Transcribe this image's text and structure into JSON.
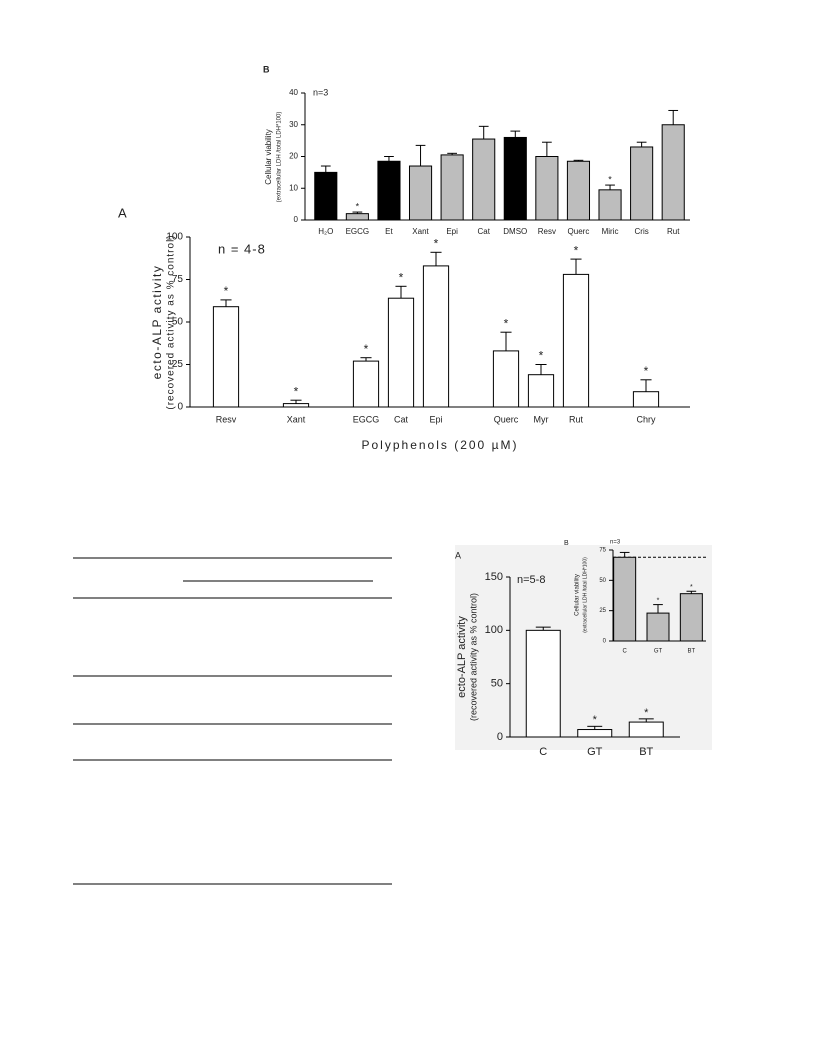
{
  "chart_data": [
    {
      "type": "bar",
      "panel": "A",
      "annotation": "n = 4-8",
      "ylabel": "ecto-ALP activity",
      "ylabel_sub": "(recovered activity as % control)",
      "xlabel": "Polyphenols (200 µM)",
      "categories": [
        "Resv",
        null,
        "Xant",
        null,
        "EGCG",
        "Cat",
        "Epi",
        null,
        "Querc",
        "Myr",
        "Rut",
        null,
        "Chry"
      ],
      "values": [
        59,
        null,
        2,
        null,
        27,
        64,
        83,
        null,
        33,
        19,
        78,
        null,
        9
      ],
      "errors": [
        4,
        null,
        2,
        null,
        2,
        7,
        8,
        null,
        11,
        6,
        9,
        null,
        7
      ],
      "significance": [
        "*",
        null,
        "*",
        null,
        "*",
        "*",
        "*",
        null,
        "*",
        "*",
        "*",
        null,
        "*"
      ],
      "colors": [
        "#ffffff",
        null,
        "#ffffff",
        null,
        "#ffffff",
        "#ffffff",
        "#ffffff",
        null,
        "#ffffff",
        "#ffffff",
        "#ffffff",
        null,
        "#ffffff"
      ],
      "ylim": [
        0,
        100
      ],
      "yticks": [
        0,
        25,
        50,
        75,
        100
      ]
    },
    {
      "type": "bar",
      "panel": "B",
      "annotation": "n=3",
      "ylabel": "Cellular viability",
      "ylabel_sub": "(extracellular LDH /total LDH*100)",
      "categories": [
        "H₂O",
        "EGCG",
        "Et",
        "Xant",
        "Epi",
        "Cat",
        "DMSO",
        "Resv",
        "Querc",
        "Miric",
        "Cris",
        "Rut"
      ],
      "values": [
        15,
        2,
        18.5,
        17,
        20.5,
        25.5,
        26,
        20,
        18.5,
        9.5,
        23,
        30
      ],
      "errors": [
        2,
        0.5,
        1.5,
        6.5,
        0.5,
        4,
        2,
        4.5,
        0.3,
        1.5,
        1.5,
        4.5
      ],
      "significance": [
        null,
        "*",
        null,
        null,
        null,
        null,
        null,
        null,
        null,
        "*",
        null,
        null
      ],
      "colors": [
        "#000000",
        "#bdbdbd",
        "#000000",
        "#bdbdbd",
        "#bdbdbd",
        "#bdbdbd",
        "#000000",
        "#bdbdbd",
        "#bdbdbd",
        "#bdbdbd",
        "#bdbdbd",
        "#bdbdbd"
      ],
      "ylim": [
        0,
        40
      ],
      "yticks": [
        0,
        10,
        20,
        30,
        40
      ]
    },
    {
      "type": "bar",
      "panel": "A",
      "annotation": "n=5-8",
      "ylabel": "ecto-ALP activity",
      "ylabel_sub": "(recovered activity as % control)",
      "categories": [
        "C",
        "GT",
        "BT"
      ],
      "values": [
        100,
        7,
        14
      ],
      "errors": [
        3,
        3,
        3
      ],
      "significance": [
        null,
        "*",
        "*"
      ],
      "colors": [
        "#ffffff",
        "#ffffff",
        "#ffffff"
      ],
      "ylim": [
        0,
        150
      ],
      "yticks": [
        0,
        50,
        100,
        150
      ]
    },
    {
      "type": "bar",
      "panel": "B",
      "annotation": "n=3",
      "ylabel": "Cellular viability",
      "ylabel_sub": "(extracellular LDH /total LDH*100)",
      "categories": [
        "C",
        "GT",
        "BT"
      ],
      "values": [
        69,
        23,
        39
      ],
      "errors": [
        4,
        7,
        2
      ],
      "significance": [
        null,
        "*",
        "*"
      ],
      "colors": [
        "#bdbdbd",
        "#bdbdbd",
        "#bdbdbd"
      ],
      "reference_line": 69,
      "ylim": [
        0,
        75
      ],
      "yticks": [
        0,
        25,
        50,
        75
      ]
    }
  ]
}
